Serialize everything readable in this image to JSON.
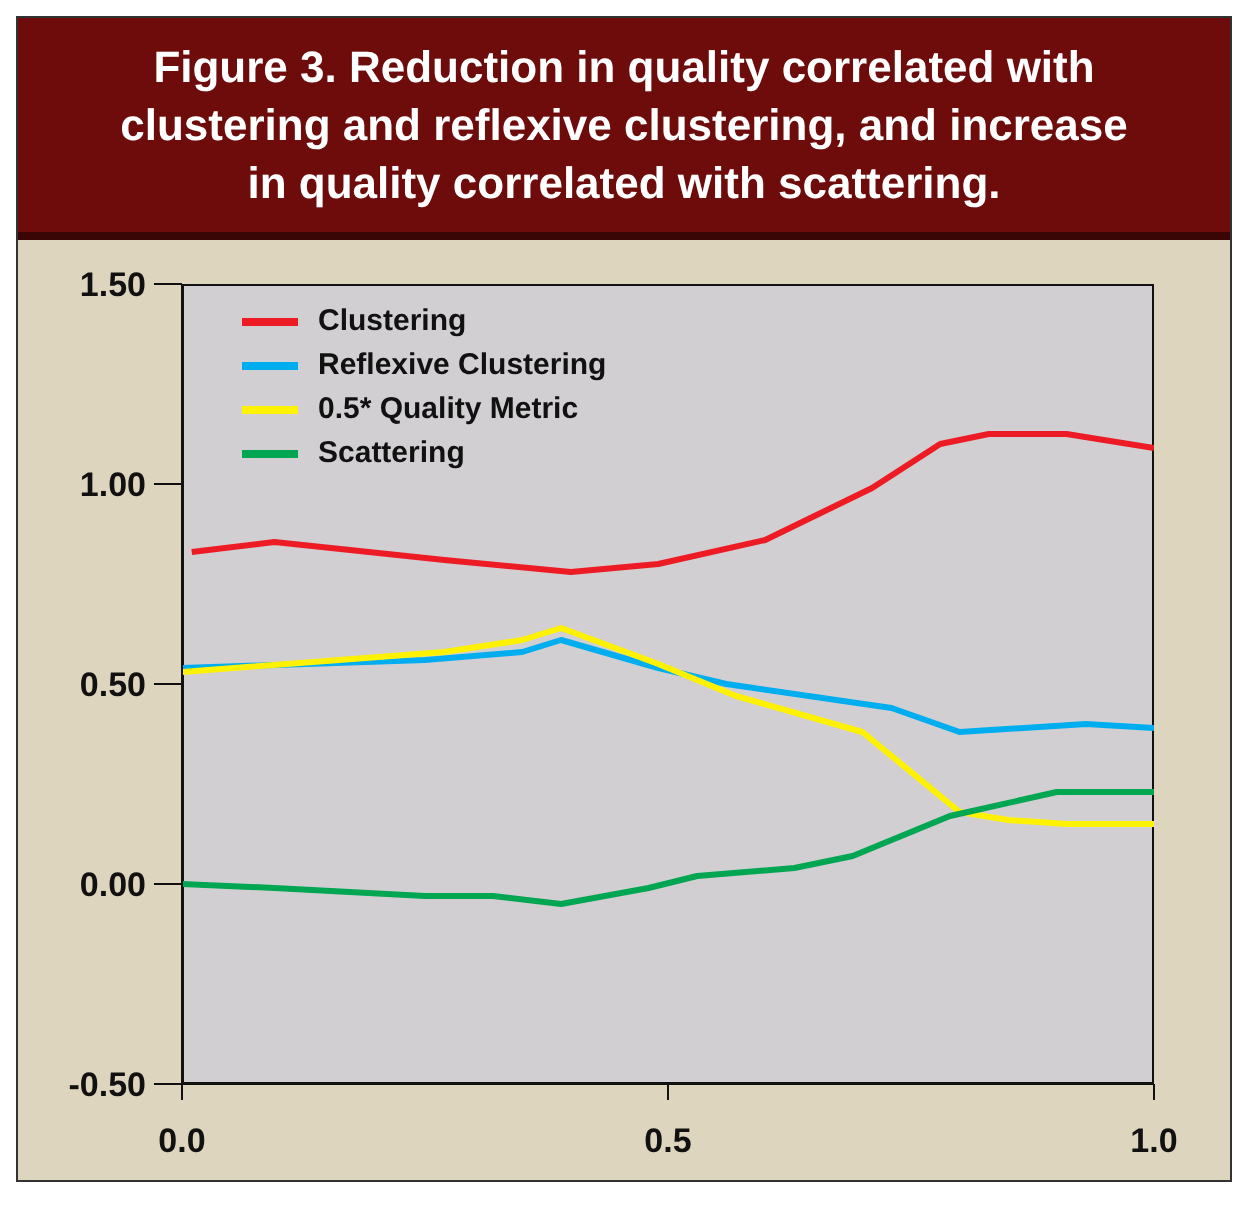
{
  "chart_data": {
    "type": "line",
    "title": "Figure 3.  Reduction in quality correlated with clustering and reflexive clustering, and increase in quality correlated with scattering.",
    "xlim": [
      0,
      1
    ],
    "xticks": [
      {
        "value": 0,
        "label": "0.0"
      },
      {
        "value": 0.5,
        "label": "0.5"
      },
      {
        "value": 1,
        "label": "1.0"
      }
    ],
    "ylim": [
      -0.5,
      1.5
    ],
    "yticks": [
      {
        "value": -0.5,
        "label": "-0.50"
      },
      {
        "value": 0,
        "label": "0.00"
      },
      {
        "value": 0.5,
        "label": "0.50"
      },
      {
        "value": 1,
        "label": "1.00"
      },
      {
        "value": 1.5,
        "label": "1.50"
      }
    ],
    "grid": false,
    "legend": "top left",
    "marker": "none",
    "line_style": "solid",
    "series": [
      {
        "name": "Clustering",
        "color": "#ed1c24",
        "x": [
          0.01,
          0.095,
          0.27,
          0.4,
          0.49,
          0.6,
          0.71,
          0.78,
          0.83,
          0.91,
          1.0
        ],
        "values": [
          0.83,
          0.855,
          0.81,
          0.78,
          0.8,
          0.86,
          0.99,
          1.1,
          1.125,
          1.125,
          1.09
        ]
      },
      {
        "name": "Reflexive Clustering",
        "color": "#00aeef",
        "x": [
          0,
          0.25,
          0.35,
          0.39,
          0.49,
          0.56,
          0.73,
          0.8,
          0.93,
          1.0
        ],
        "values": [
          0.54,
          0.56,
          0.58,
          0.61,
          0.54,
          0.5,
          0.44,
          0.38,
          0.4,
          0.39
        ]
      },
      {
        "name": "0.5* Quality Metric",
        "color": "#fff200",
        "x": [
          0,
          0.27,
          0.35,
          0.39,
          0.49,
          0.57,
          0.7,
          0.8,
          0.85,
          0.91,
          1.0
        ],
        "values": [
          0.53,
          0.58,
          0.61,
          0.64,
          0.55,
          0.47,
          0.38,
          0.18,
          0.16,
          0.15,
          0.15
        ]
      },
      {
        "name": "Scattering",
        "color": "#00a651",
        "x": [
          0,
          0.095,
          0.25,
          0.32,
          0.39,
          0.48,
          0.53,
          0.63,
          0.69,
          0.79,
          0.9,
          1.0
        ],
        "values": [
          0,
          -0.01,
          -0.03,
          -0.03,
          -0.05,
          -0.01,
          0.02,
          0.04,
          0.07,
          0.17,
          0.23,
          0.23
        ]
      }
    ]
  }
}
